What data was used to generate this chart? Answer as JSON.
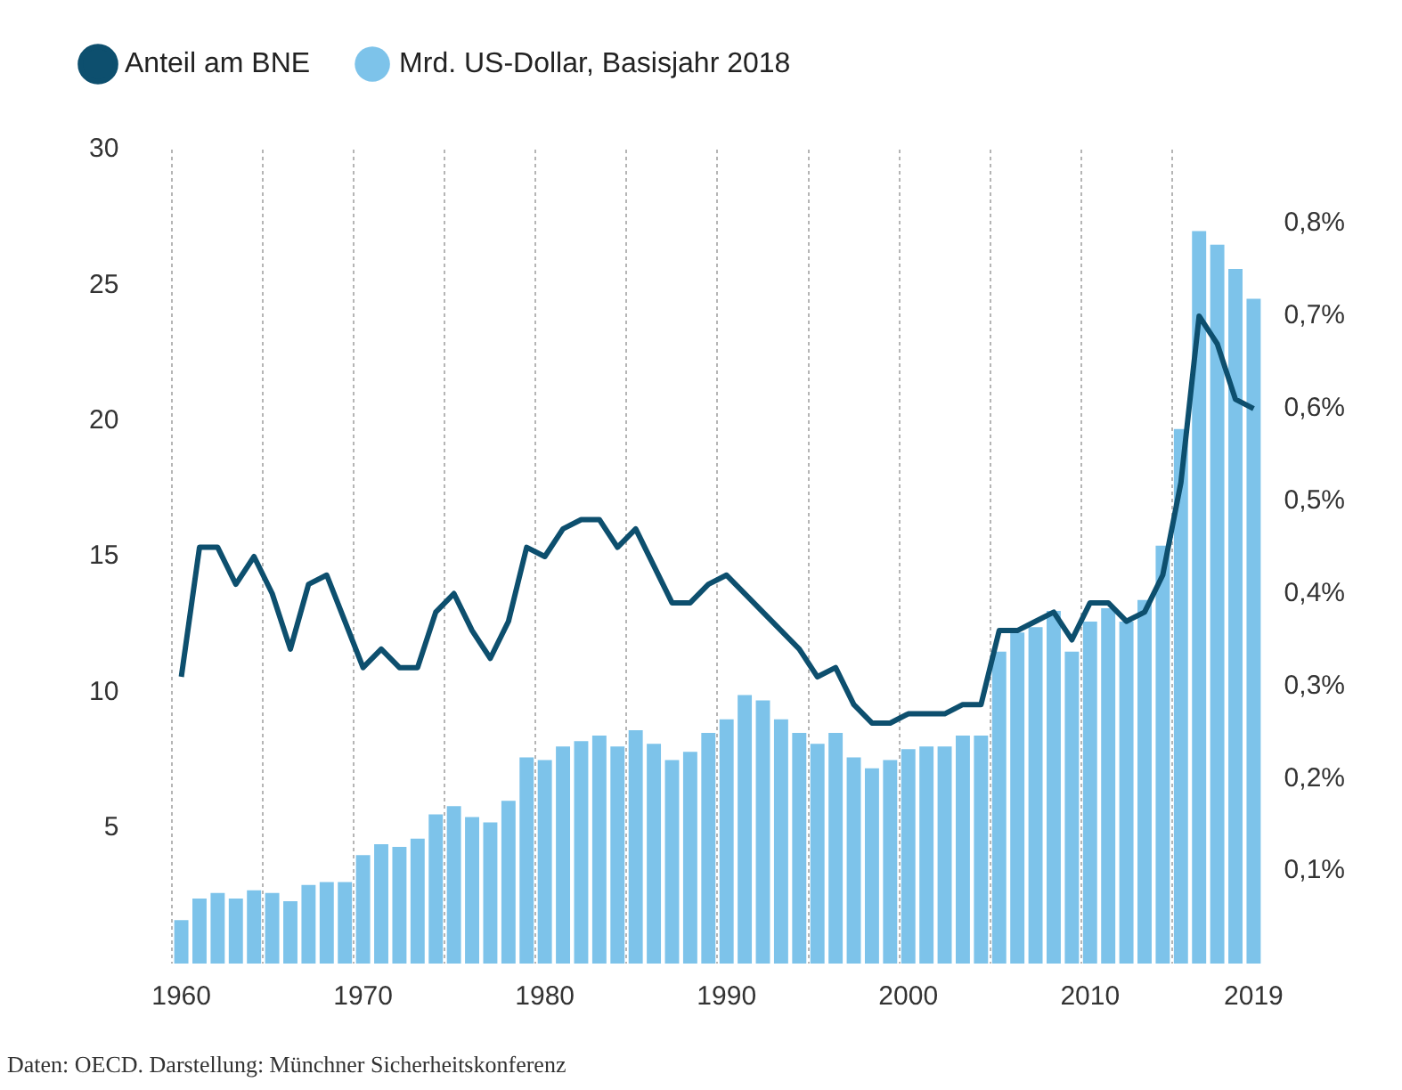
{
  "chart_data": {
    "type": "bar",
    "categories": [
      "1960",
      null,
      null,
      null,
      null,
      null,
      null,
      null,
      null,
      null,
      "1970",
      null,
      null,
      null,
      null,
      null,
      null,
      null,
      null,
      null,
      "1980",
      null,
      null,
      null,
      null,
      null,
      null,
      null,
      null,
      null,
      "1990",
      null,
      null,
      null,
      null,
      null,
      null,
      null,
      null,
      null,
      "2000",
      null,
      null,
      null,
      null,
      null,
      null,
      null,
      null,
      null,
      "2010",
      null,
      null,
      null,
      null,
      null,
      null,
      null,
      null,
      "2019"
    ],
    "series": [
      {
        "name": "Anteil am BNE",
        "type": "line",
        "axis": "y2",
        "color": "#0d4f6e",
        "values": [
          0.31,
          0.45,
          0.45,
          0.41,
          0.44,
          0.4,
          0.34,
          0.41,
          0.42,
          0.37,
          0.32,
          0.34,
          0.32,
          0.32,
          0.38,
          0.4,
          0.36,
          0.33,
          0.37,
          0.45,
          0.44,
          0.47,
          0.48,
          0.48,
          0.45,
          0.47,
          0.43,
          0.39,
          0.39,
          0.41,
          0.42,
          0.4,
          0.38,
          0.36,
          0.34,
          0.31,
          0.32,
          0.28,
          0.26,
          0.26,
          0.27,
          0.27,
          0.27,
          0.28,
          0.28,
          0.36,
          0.36,
          0.37,
          0.38,
          0.35,
          0.39,
          0.39,
          0.37,
          0.38,
          0.42,
          0.52,
          0.7,
          0.67,
          0.61,
          0.6
        ]
      },
      {
        "name": "Mrd. US-Dollar, Basisjahr 2018",
        "color": "#7dc3ea",
        "values": [
          1.6,
          2.4,
          2.6,
          2.4,
          2.7,
          2.6,
          2.3,
          2.9,
          3.0,
          3.0,
          4.0,
          4.4,
          4.3,
          4.6,
          5.5,
          5.8,
          5.4,
          5.2,
          6.0,
          7.6,
          7.5,
          8.0,
          8.2,
          8.4,
          8.0,
          8.6,
          8.1,
          7.5,
          7.8,
          8.5,
          9.0,
          9.9,
          9.7,
          9.0,
          8.5,
          8.1,
          8.5,
          7.6,
          7.2,
          7.5,
          7.9,
          8.0,
          8.0,
          8.4,
          8.4,
          11.5,
          12.2,
          12.4,
          13.0,
          11.5,
          12.6,
          13.1,
          12.6,
          13.4,
          15.4,
          19.7,
          27.0,
          26.5,
          25.6,
          24.5
        ]
      }
    ],
    "ylim": [
      0,
      30
    ],
    "yticks": [
      5,
      10,
      15,
      20,
      25,
      30
    ],
    "y2lim": [
      0,
      0.88
    ],
    "y2ticks": [
      {
        "value": 0.1,
        "label": "0,1%"
      },
      {
        "value": 0.2,
        "label": "0,2%"
      },
      {
        "value": 0.3,
        "label": "0,3%"
      },
      {
        "value": 0.4,
        "label": "0,4%"
      },
      {
        "value": 0.5,
        "label": "0,5%"
      },
      {
        "value": 0.6,
        "label": "0,6%"
      },
      {
        "value": 0.7,
        "label": "0,7%"
      },
      {
        "value": 0.8,
        "label": "0,8%"
      }
    ],
    "grid": "x",
    "legend": "top left",
    "annotations": [
      "Daten: OECD. Darstellung: Münchner Sicherheitskonferenz"
    ]
  }
}
